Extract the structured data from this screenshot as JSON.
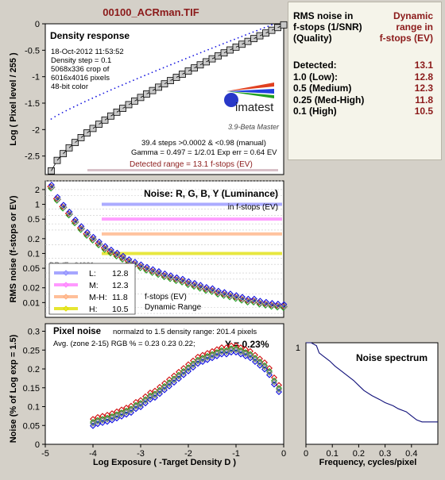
{
  "title": "00100_ACRman.TIF",
  "colors": {
    "bg": "#d4d0c8",
    "plot_bg": "#ffffff",
    "title": "#8b1a1a",
    "red": "#d01010",
    "green": "#20a020",
    "blue": "#1010e0",
    "gray": "#808080",
    "value": "#8b1a1a"
  },
  "info_panel": {
    "header_left": [
      "RMS noise in",
      "f-stops (1/SNR)",
      "(Quality)"
    ],
    "header_right": [
      "Dynamic",
      "range in",
      "f-stops (EV)"
    ],
    "rows": [
      {
        "label": "Detected:",
        "value": "13.1"
      },
      {
        "label": "1.0  (Low):",
        "value": "12.8"
      },
      {
        "label": "0.5  (Medium)",
        "value": "12.3"
      },
      {
        "label": "0.25 (Med-High)",
        "value": "11.8"
      },
      {
        "label": "0.1  (High)",
        "value": "10.5"
      }
    ]
  },
  "density_panel": {
    "title": "Density response",
    "info_lines": [
      "18-Oct-2012 11:53:52",
      "Density step = 0.1",
      "5068x336 crop of",
      "6016x4016 pixels",
      "48-bit color"
    ],
    "logo": "imatest",
    "version": "3.9-Beta  Master",
    "stats_lines": [
      "39.4 steps >0.0002 & <0.98 (manual)",
      "Gamma = 0.497 = 1/2.01  Exp err = 0.64 EV"
    ],
    "detected_range": "Detected range = 13.1 f-stops (EV)",
    "ylabel": "Log ( Pixel level / 255 )"
  },
  "noise_panel": {
    "title": "Noise: R, G, B, Y (Luminance)",
    "subtitle": "in f-stops (EV)",
    "ylabel": "RMS noise (f-stops or EV)",
    "partial_text": "DR (Ev 64001",
    "legend": [
      {
        "label": "L:",
        "value": "12.8",
        "color": "#9090ff"
      },
      {
        "label": "M:",
        "value": "12.3",
        "color": "#ff80ff"
      },
      {
        "label": "M-H:",
        "value": "11.8",
        "color": "#ffb080"
      },
      {
        "label": "H:",
        "value": "10.5",
        "color": "#e0e000"
      }
    ],
    "legend_caption": [
      "f-stops (EV)",
      "Dynamic Range"
    ]
  },
  "pixel_panel": {
    "title": "Pixel noise",
    "norm_text": "normalzd to 1.5 density range: 201.4 pixels",
    "avg_text": "Avg. (zone 2-15) RGB % = 0.23  0.23  0.22;",
    "y_text": "Y = 0.23%",
    "ylabel": "Noise (% of Log exp = 1.5)",
    "xlabel": "Log Exposure ( -Target Density D )"
  },
  "spectrum_panel": {
    "title": "Noise spectrum",
    "xlabel": "Frequency, cycles/pixel"
  },
  "chart_data": [
    {
      "type": "scatter",
      "name": "density-response",
      "xlim": [
        -4.1,
        -0.1
      ],
      "ylim": [
        -2.85,
        0
      ],
      "yticks": [
        0,
        -0.5,
        -1,
        -1.5,
        -2,
        -2.5
      ],
      "ytick_labels": [
        "0",
        "-0.5",
        "-1",
        "-1.5",
        "-2",
        "-2.5"
      ],
      "series": [
        {
          "style": "squares",
          "x_start": -4.0,
          "x_end": -0.1,
          "count": 40,
          "y_start": -2.78,
          "y_end": -0.02,
          "gamma": 0.497
        },
        {
          "style": "dotted-blue",
          "x_start": -4.0,
          "x_end": -0.3,
          "y_start": -1.8,
          "y_end": -0.02
        }
      ]
    },
    {
      "type": "scatter",
      "name": "rms-noise",
      "yscale": "log",
      "ylim": [
        0.005,
        3
      ],
      "yticks": [
        2,
        1,
        0.5,
        0.2,
        0.1,
        0.05,
        0.02,
        0.01
      ],
      "ytick_labels": [
        "2",
        "1",
        "0.5",
        "0.2",
        "0.1",
        "0.05",
        "0.02",
        "0.01"
      ],
      "threshold_lines": [
        1.0,
        0.5,
        0.25,
        0.1
      ],
      "series_colors": [
        "#d01010",
        "#20a020",
        "#1010e0",
        "#808080"
      ],
      "x": [
        -4.0,
        -3.9,
        -3.8,
        -3.7,
        -3.6,
        -3.5,
        -3.4,
        -3.3,
        -3.2,
        -3.1,
        -3.0,
        -2.9,
        -2.8,
        -2.7,
        -2.6,
        -2.5,
        -2.4,
        -2.3,
        -2.2,
        -2.1,
        -2.0,
        -1.9,
        -1.8,
        -1.7,
        -1.6,
        -1.5,
        -1.4,
        -1.3,
        -1.2,
        -1.1,
        -1.0,
        -0.9,
        -0.8,
        -0.7,
        -0.6,
        -0.5,
        -0.4,
        -0.3,
        -0.2,
        -0.1
      ],
      "y": [
        2.3,
        1.3,
        0.9,
        0.65,
        0.45,
        0.33,
        0.25,
        0.2,
        0.16,
        0.13,
        0.11,
        0.095,
        0.082,
        0.07,
        0.062,
        0.055,
        0.049,
        0.044,
        0.04,
        0.036,
        0.033,
        0.03,
        0.028,
        0.025,
        0.023,
        0.021,
        0.019,
        0.018,
        0.016,
        0.015,
        0.014,
        0.013,
        0.012,
        0.011,
        0.011,
        0.01,
        0.0095,
        0.009,
        0.0087,
        0.0085
      ]
    },
    {
      "type": "scatter",
      "name": "pixel-noise",
      "xlim": [
        -5,
        0
      ],
      "ylim": [
        0,
        0.32
      ],
      "xticks": [
        -5,
        -4,
        -3,
        -2,
        -1,
        0
      ],
      "xtick_labels": [
        "-5",
        "-4",
        "-3",
        "-2",
        "-1",
        "0"
      ],
      "yticks": [
        0,
        0.05,
        0.1,
        0.15,
        0.2,
        0.25,
        0.3
      ],
      "ytick_labels": [
        "0",
        "0.05",
        "0.1",
        "0.15",
        "0.2",
        "0.25",
        "0.3"
      ],
      "series_colors": [
        "#d01010",
        "#20a020",
        "#1010e0",
        "#808080"
      ],
      "x": [
        -4.0,
        -3.9,
        -3.8,
        -3.7,
        -3.6,
        -3.5,
        -3.4,
        -3.3,
        -3.2,
        -3.1,
        -3.0,
        -2.9,
        -2.8,
        -2.7,
        -2.6,
        -2.5,
        -2.4,
        -2.3,
        -2.2,
        -2.1,
        -2.0,
        -1.9,
        -1.8,
        -1.7,
        -1.6,
        -1.5,
        -1.4,
        -1.3,
        -1.2,
        -1.1,
        -1.0,
        -0.9,
        -0.8,
        -0.7,
        -0.6,
        -0.5,
        -0.4,
        -0.3,
        -0.2,
        -0.1
      ],
      "y": [
        0.055,
        0.06,
        0.063,
        0.066,
        0.07,
        0.075,
        0.08,
        0.085,
        0.09,
        0.1,
        0.105,
        0.115,
        0.125,
        0.13,
        0.14,
        0.15,
        0.16,
        0.17,
        0.18,
        0.19,
        0.2,
        0.21,
        0.22,
        0.225,
        0.23,
        0.235,
        0.24,
        0.245,
        0.245,
        0.25,
        0.25,
        0.245,
        0.24,
        0.235,
        0.225,
        0.215,
        0.205,
        0.19,
        0.165,
        0.145
      ]
    },
    {
      "type": "line",
      "name": "noise-spectrum",
      "xlim": [
        0,
        0.5
      ],
      "ylim": [
        0,
        1
      ],
      "xticks": [
        0,
        0.1,
        0.2,
        0.3,
        0.4
      ],
      "xtick_labels": [
        "0",
        "0.1",
        "0.2",
        "0.3",
        "0.4"
      ],
      "yticks": [
        1
      ],
      "ytick_labels": [
        "1"
      ],
      "x": [
        0,
        0.02,
        0.04,
        0.05,
        0.07,
        0.09,
        0.11,
        0.13,
        0.15,
        0.18,
        0.2,
        0.22,
        0.25,
        0.28,
        0.3,
        0.33,
        0.35,
        0.38,
        0.4,
        0.42,
        0.44,
        0.46,
        0.5
      ],
      "y": [
        1.0,
        1.0,
        0.97,
        0.9,
        0.86,
        0.82,
        0.77,
        0.73,
        0.69,
        0.63,
        0.58,
        0.53,
        0.48,
        0.44,
        0.41,
        0.38,
        0.35,
        0.32,
        0.28,
        0.24,
        0.22,
        0.22,
        0.22
      ]
    }
  ]
}
